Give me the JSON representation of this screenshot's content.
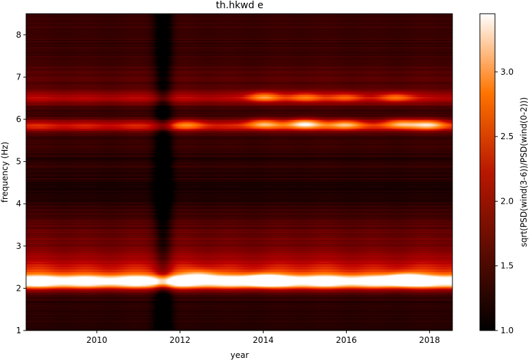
{
  "chart_data": {
    "type": "heatmap",
    "title": "th.hkwd e",
    "xlabel": "year",
    "ylabel": "frequency (Hz)",
    "colorbar_label": "sqrt(PSD(wind(3-6))/PSD(wind(0-2)))",
    "colormap": "gist_heat",
    "xlim": [
      2008.3,
      2018.55
    ],
    "ylim": [
      1.0,
      8.5
    ],
    "xticks": [
      {
        "value": 2010,
        "label": "2010"
      },
      {
        "value": 2012,
        "label": "2012"
      },
      {
        "value": 2014,
        "label": "2014"
      },
      {
        "value": 2016,
        "label": "2016"
      },
      {
        "value": 2018,
        "label": "2018"
      }
    ],
    "yticks": [
      {
        "value": 1,
        "label": "1"
      },
      {
        "value": 2,
        "label": "2"
      },
      {
        "value": 3,
        "label": "3"
      },
      {
        "value": 4,
        "label": "4"
      },
      {
        "value": 5,
        "label": "5"
      },
      {
        "value": 6,
        "label": "6"
      },
      {
        "value": 7,
        "label": "7"
      },
      {
        "value": 8,
        "label": "8"
      }
    ],
    "color_range": [
      1.0,
      3.45
    ],
    "colorbar_ticks": [
      {
        "value": 1.0,
        "label": "1.0"
      },
      {
        "value": 1.5,
        "label": "1.5"
      },
      {
        "value": 2.0,
        "label": "2.0"
      },
      {
        "value": 2.5,
        "label": "2.5"
      },
      {
        "value": 3.0,
        "label": "3.0"
      }
    ],
    "background_level": 1.35,
    "frequency_bands": [
      {
        "freq": 2.15,
        "width": 0.12,
        "level": 2.15
      },
      {
        "freq": 2.45,
        "width": 0.25,
        "level": 0.75
      },
      {
        "freq": 3.05,
        "width": 0.45,
        "level": 0.35
      },
      {
        "freq": 5.85,
        "width": 0.1,
        "level": 1.05
      },
      {
        "freq": 6.5,
        "width": 0.12,
        "level": 0.75
      },
      {
        "freq": 7.0,
        "width": 0.2,
        "level": 0.2
      },
      {
        "freq": 4.4,
        "width": 0.5,
        "level": -0.15
      },
      {
        "freq": 1.4,
        "width": 0.35,
        "level": -0.12
      }
    ],
    "bright_spots": [
      {
        "year": 2014.0,
        "freq": 6.53,
        "level": 0.9
      },
      {
        "year": 2015.0,
        "freq": 6.52,
        "level": 0.7
      },
      {
        "year": 2016.0,
        "freq": 6.52,
        "level": 0.6
      },
      {
        "year": 2017.2,
        "freq": 6.52,
        "level": 0.7
      },
      {
        "year": 2014.0,
        "freq": 5.9,
        "level": 0.9
      },
      {
        "year": 2015.0,
        "freq": 5.9,
        "level": 1.2
      },
      {
        "year": 2016.0,
        "freq": 5.88,
        "level": 0.9
      },
      {
        "year": 2017.3,
        "freq": 5.9,
        "level": 0.9
      },
      {
        "year": 2018.0,
        "freq": 5.88,
        "level": 0.9
      },
      {
        "year": 2012.2,
        "freq": 5.88,
        "level": 0.5
      },
      {
        "year": 2014.0,
        "freq": 2.2,
        "level": 1.1
      },
      {
        "year": 2017.4,
        "freq": 2.22,
        "level": 1.2
      },
      {
        "year": 2012.5,
        "freq": 2.3,
        "level": 0.6
      }
    ],
    "dark_periods": [
      {
        "year": 2011.6,
        "width": 0.15,
        "level": 0.55
      }
    ]
  }
}
